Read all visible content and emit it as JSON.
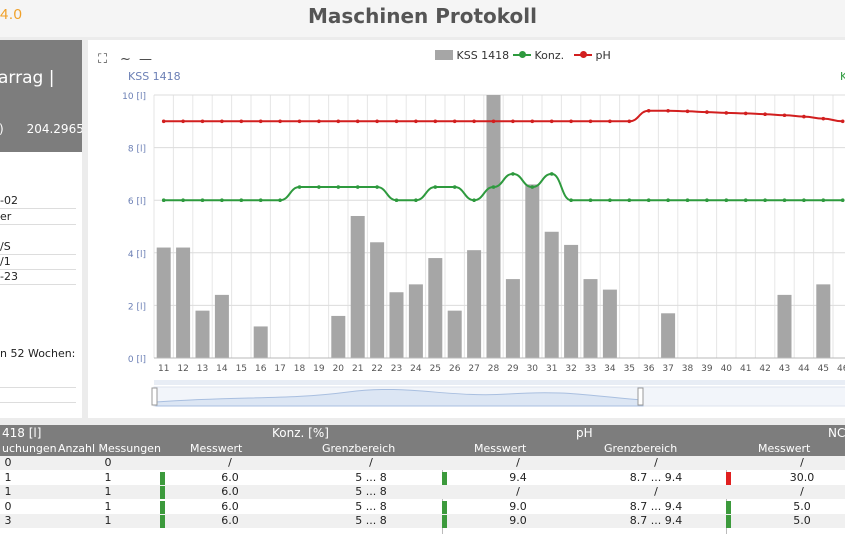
{
  "header": {
    "logo": "4.0",
    "title": "Maschinen Protokoll"
  },
  "left_panel": {
    "name": "arrag |",
    "value_label": ")",
    "value": "204.2965",
    "rows": [
      "-02",
      "er",
      "/S",
      "/1",
      "-23"
    ],
    "note": "n 52 Wochen:"
  },
  "chart_tools": {
    "fullscreen": "⛶",
    "line": "~",
    "dash": "—"
  },
  "chart_data": {
    "type": "bar",
    "title": "",
    "left_axis_label": "KSS 1418",
    "right_axis_label": "K",
    "ylabel_unit": "[l]",
    "ylim": [
      0,
      10
    ],
    "yticks": [
      "0 [l]",
      "2 [l]",
      "4 [l]",
      "6 [l]",
      "8 [l]",
      "10 [l]"
    ],
    "categories": [
      "11",
      "12",
      "13",
      "14",
      "15",
      "16",
      "17",
      "18",
      "19",
      "20",
      "21",
      "22",
      "23",
      "24",
      "25",
      "26",
      "27",
      "28",
      "29",
      "30",
      "31",
      "32",
      "33",
      "34",
      "35",
      "36",
      "37",
      "38",
      "39",
      "40",
      "41",
      "42",
      "43",
      "44",
      "45",
      "46"
    ],
    "legend": [
      "KSS 1418",
      "Konz.",
      "pH"
    ],
    "series": [
      {
        "name": "KSS 1418",
        "type": "bar",
        "color": "#a6a6a6",
        "values": [
          4.2,
          4.2,
          1.8,
          2.4,
          0,
          1.2,
          0,
          0,
          0,
          1.6,
          5.4,
          4.4,
          2.5,
          2.8,
          3.8,
          1.8,
          4.1,
          10.1,
          3.0,
          6.6,
          4.8,
          4.3,
          3.0,
          2.6,
          0,
          0,
          1.7,
          0,
          0,
          0,
          0,
          0,
          2.4,
          0,
          2.8,
          0
        ]
      },
      {
        "name": "Konz.",
        "type": "line",
        "color": "#2e9a3e",
        "values": [
          6,
          6,
          6,
          6,
          6,
          6,
          6,
          6.5,
          6.5,
          6.5,
          6.5,
          6.5,
          6,
          6,
          6.5,
          6.5,
          6,
          6.5,
          7,
          6.5,
          7,
          6,
          6,
          6,
          6,
          6,
          6,
          6,
          6,
          6,
          6,
          6,
          6,
          6,
          6,
          6
        ]
      },
      {
        "name": "pH",
        "type": "line",
        "color": "#d21f1f",
        "values": [
          9,
          9,
          9,
          9,
          9,
          9,
          9,
          9,
          9,
          9,
          9,
          9,
          9,
          9,
          9,
          9,
          9,
          9,
          9,
          9,
          9,
          9,
          9,
          9,
          9,
          9.4,
          9.4,
          9.38,
          9.35,
          9.32,
          9.3,
          9.27,
          9.23,
          9.18,
          9.1,
          9.0
        ]
      }
    ]
  },
  "table": {
    "group_headers": [
      "418 [l]",
      "Konz. [%]",
      "pH",
      "NC"
    ],
    "sub_headers": [
      "uchungen",
      "Anzahl Messungen",
      "Messwert",
      "Grenzbereich",
      "Messwert",
      "Grenzbereich",
      "Messwert"
    ],
    "rows": [
      {
        "c0": "0",
        "c1": "0",
        "konz": "/",
        "konz_range": "/",
        "ph": "/",
        "ph_range": "/",
        "no": "/",
        "m1": "",
        "m2": "",
        "m3": ""
      },
      {
        "c0": "1",
        "c1": "1",
        "konz": "6.0",
        "konz_range": "5 ... 8",
        "ph": "9.4",
        "ph_range": "8.7 ... 9.4",
        "no": "30.0",
        "m1": "#3c9a3c",
        "m2": "#3c9a3c",
        "m3": "#e02020"
      },
      {
        "c0": "1",
        "c1": "1",
        "konz": "6.0",
        "konz_range": "5 ... 8",
        "ph": "/",
        "ph_range": "/",
        "no": "/",
        "m1": "#3c9a3c",
        "m2": "",
        "m3": ""
      },
      {
        "c0": "0",
        "c1": "1",
        "konz": "6.0",
        "konz_range": "5 ... 8",
        "ph": "9.0",
        "ph_range": "8.7 ... 9.4",
        "no": "5.0",
        "m1": "#3c9a3c",
        "m2": "#3c9a3c",
        "m3": "#3c9a3c"
      },
      {
        "c0": "3",
        "c1": "1",
        "konz": "6.0",
        "konz_range": "5 ... 8",
        "ph": "9.0",
        "ph_range": "8.7 ... 9.4",
        "no": "5.0",
        "m1": "#3c9a3c",
        "m2": "#3c9a3c",
        "m3": "#3c9a3c"
      }
    ]
  }
}
